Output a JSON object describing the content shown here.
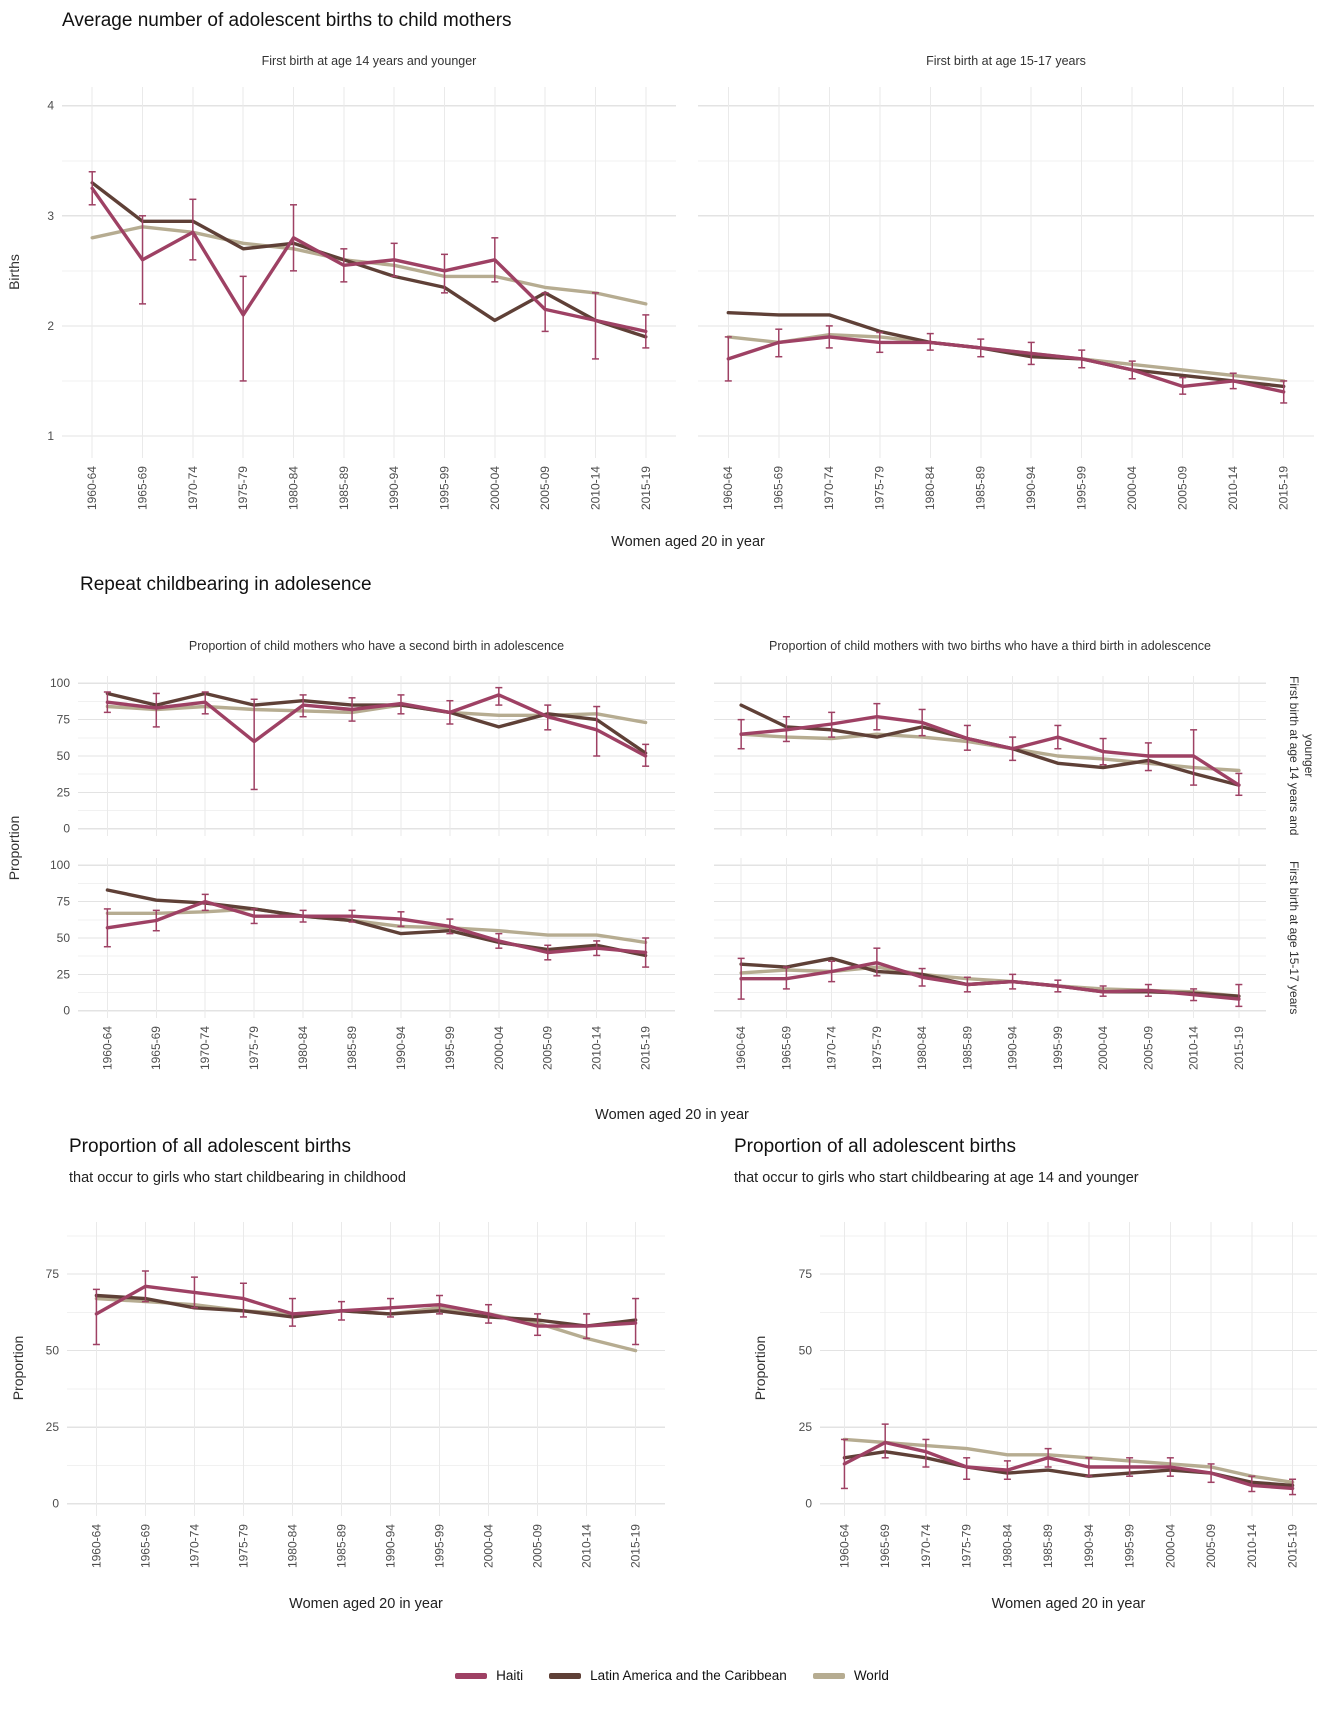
{
  "colors": {
    "Haiti": "#9e4164",
    "Latin America and the Caribbean": "#5f4037",
    "World": "#b6ac91"
  },
  "legend": {
    "items": [
      {
        "label": "Haiti"
      },
      {
        "label": "Latin America and the Caribbean"
      },
      {
        "label": "World"
      }
    ]
  },
  "chart_data": [
    {
      "id": "average-births",
      "type": "line",
      "title": "Average number of adolescent births to child mothers",
      "xlabel": "Women aged 20 in year",
      "ylabel": "Births",
      "categories": [
        "1960-64",
        "1965-69",
        "1970-74",
        "1975-79",
        "1980-84",
        "1985-89",
        "1990-94",
        "1995-99",
        "2000-04",
        "2005-09",
        "2010-14",
        "2015-19"
      ],
      "ylim": [
        0.8,
        4.17
      ],
      "yticks": [
        1,
        2,
        3,
        4
      ],
      "grid": true,
      "legend_position": "bottom",
      "panels": [
        {
          "facet": "First birth at age 14 years and younger",
          "series": [
            {
              "name": "Haiti",
              "values": [
                3.25,
                2.6,
                2.85,
                2.1,
                2.8,
                2.55,
                2.6,
                2.5,
                2.6,
                2.15,
                2.05,
                1.95
              ],
              "err_lo": [
                3.1,
                2.2,
                2.6,
                1.5,
                2.5,
                2.4,
                2.45,
                2.3,
                2.4,
                1.95,
                1.7,
                1.8
              ],
              "err_hi": [
                3.4,
                3.0,
                3.15,
                2.45,
                3.1,
                2.7,
                2.75,
                2.65,
                2.8,
                2.3,
                2.3,
                2.1
              ]
            },
            {
              "name": "Latin America and the Caribbean",
              "values": [
                3.3,
                2.95,
                2.95,
                2.7,
                2.75,
                2.6,
                2.45,
                2.35,
                2.05,
                2.3,
                2.05,
                1.9
              ]
            },
            {
              "name": "World",
              "values": [
                2.8,
                2.9,
                2.85,
                2.75,
                2.7,
                2.6,
                2.55,
                2.45,
                2.45,
                2.35,
                2.3,
                2.2
              ]
            }
          ]
        },
        {
          "facet": "First birth at age 15-17 years",
          "series": [
            {
              "name": "Haiti",
              "values": [
                1.7,
                1.85,
                1.9,
                1.85,
                1.85,
                1.8,
                1.75,
                1.7,
                1.6,
                1.45,
                1.5,
                1.4
              ],
              "err_lo": [
                1.5,
                1.72,
                1.8,
                1.76,
                1.78,
                1.72,
                1.65,
                1.62,
                1.52,
                1.38,
                1.43,
                1.3
              ],
              "err_hi": [
                1.9,
                1.97,
                2.0,
                1.94,
                1.93,
                1.88,
                1.85,
                1.78,
                1.68,
                1.53,
                1.57,
                1.5
              ]
            },
            {
              "name": "Latin America and the Caribbean",
              "values": [
                2.12,
                2.1,
                2.1,
                1.95,
                1.85,
                1.8,
                1.72,
                1.7,
                1.6,
                1.55,
                1.5,
                1.45
              ]
            },
            {
              "name": "World",
              "values": [
                1.9,
                1.85,
                1.92,
                1.9,
                1.85,
                1.8,
                1.75,
                1.7,
                1.65,
                1.6,
                1.55,
                1.5
              ]
            }
          ]
        }
      ]
    },
    {
      "id": "repeat-childbearing",
      "type": "line",
      "title": "Repeat childbearing in adolesence",
      "xlabel": "Women aged 20 in year",
      "ylabel": "Proportion",
      "col_titles": [
        "Proportion of child mothers who have a second birth in adolescence",
        "Proportion of child mothers with two births who have a third birth in adolescence"
      ],
      "row_titles": [
        "First birth at age 14 years and younger",
        "First birth at age 15-17 years"
      ],
      "categories": [
        "1960-64",
        "1965-69",
        "1970-74",
        "1975-79",
        "1980-84",
        "1985-89",
        "1990-94",
        "1995-99",
        "2000-04",
        "2005-09",
        "2010-14",
        "2015-19"
      ],
      "ylim": [
        -5,
        105
      ],
      "yticks": [
        0,
        25,
        50,
        75,
        100
      ],
      "grid": true,
      "panels": [
        {
          "row": 0,
          "col": 0,
          "series": [
            {
              "name": "Haiti",
              "values": [
                87,
                83,
                87,
                60,
                85,
                82,
                86,
                80,
                92,
                77,
                68,
                50
              ],
              "err_lo": [
                80,
                70,
                79,
                27,
                77,
                74,
                79,
                72,
                85,
                68,
                50,
                43
              ],
              "err_hi": [
                94,
                93,
                94,
                89,
                92,
                90,
                92,
                88,
                97,
                85,
                84,
                58
              ]
            },
            {
              "name": "Latin America and the Caribbean",
              "values": [
                93,
                85,
                93,
                85,
                88,
                85,
                85,
                80,
                70,
                79,
                75,
                52
              ]
            },
            {
              "name": "World",
              "values": [
                84,
                82,
                84,
                82,
                81,
                80,
                85,
                80,
                78,
                78,
                79,
                73
              ]
            }
          ]
        },
        {
          "row": 0,
          "col": 1,
          "series": [
            {
              "name": "Haiti",
              "values": [
                65,
                68,
                72,
                77,
                73,
                62,
                55,
                63,
                53,
                50,
                50,
                30
              ],
              "err_lo": [
                55,
                60,
                63,
                68,
                64,
                54,
                47,
                55,
                44,
                40,
                30,
                23
              ],
              "err_hi": [
                75,
                77,
                80,
                86,
                82,
                71,
                63,
                71,
                62,
                59,
                68,
                38
              ]
            },
            {
              "name": "Latin America and the Caribbean",
              "values": [
                85,
                70,
                68,
                63,
                70,
                62,
                55,
                45,
                42,
                47,
                38,
                30
              ]
            },
            {
              "name": "World",
              "values": [
                65,
                63,
                62,
                65,
                63,
                60,
                55,
                50,
                48,
                45,
                42,
                40
              ]
            }
          ]
        },
        {
          "row": 1,
          "col": 0,
          "series": [
            {
              "name": "Haiti",
              "values": [
                57,
                62,
                75,
                65,
                65,
                65,
                63,
                58,
                48,
                40,
                43,
                40
              ],
              "err_lo": [
                44,
                55,
                69,
                60,
                61,
                61,
                58,
                53,
                43,
                35,
                38,
                30
              ],
              "err_hi": [
                70,
                69,
                80,
                70,
                69,
                69,
                68,
                63,
                53,
                45,
                48,
                50
              ]
            },
            {
              "name": "Latin America and the Caribbean",
              "values": [
                83,
                76,
                74,
                70,
                65,
                62,
                53,
                55,
                47,
                42,
                45,
                38
              ]
            },
            {
              "name": "World",
              "values": [
                67,
                67,
                68,
                70,
                65,
                62,
                58,
                57,
                55,
                52,
                52,
                47
              ]
            }
          ]
        },
        {
          "row": 1,
          "col": 1,
          "series": [
            {
              "name": "Haiti",
              "values": [
                22,
                22,
                27,
                33,
                23,
                18,
                20,
                17,
                13,
                14,
                11,
                8
              ],
              "err_lo": [
                8,
                15,
                20,
                24,
                17,
                13,
                15,
                13,
                10,
                10,
                7,
                3
              ],
              "err_hi": [
                36,
                30,
                34,
                43,
                29,
                23,
                25,
                21,
                17,
                18,
                15,
                18
              ]
            },
            {
              "name": "Latin America and the Caribbean",
              "values": [
                32,
                30,
                36,
                27,
                25,
                18,
                20,
                17,
                13,
                13,
                12,
                10
              ]
            },
            {
              "name": "World",
              "values": [
                26,
                28,
                27,
                30,
                25,
                22,
                20,
                17,
                15,
                14,
                13,
                10
              ]
            }
          ]
        }
      ]
    },
    {
      "id": "proportion-childhood-start",
      "type": "line",
      "title": "Proportion of all adolescent births",
      "subtitle": "that occur to girls who start childbearing in childhood",
      "xlabel": "Women aged 20 in year",
      "ylabel": "Proportion",
      "categories": [
        "1960-64",
        "1965-69",
        "1970-74",
        "1975-79",
        "1980-84",
        "1985-89",
        "1990-94",
        "1995-99",
        "2000-04",
        "2005-09",
        "2010-14",
        "2015-19"
      ],
      "ylim": [
        -4,
        92
      ],
      "yticks": [
        0,
        25,
        50,
        75
      ],
      "grid": true,
      "panels": [
        {
          "series": [
            {
              "name": "Haiti",
              "values": [
                62,
                71,
                69,
                67,
                62,
                63,
                64,
                65,
                62,
                58,
                58,
                59
              ],
              "err_lo": [
                52,
                66,
                64,
                61,
                58,
                60,
                61,
                62,
                59,
                55,
                54,
                52
              ],
              "err_hi": [
                70,
                76,
                74,
                72,
                67,
                66,
                67,
                68,
                65,
                62,
                62,
                67
              ]
            },
            {
              "name": "Latin America and the Caribbean",
              "values": [
                68,
                67,
                64,
                63,
                61,
                63,
                62,
                63,
                61,
                60,
                58,
                60
              ]
            },
            {
              "name": "World",
              "values": [
                67,
                66,
                65,
                63,
                62,
                63,
                62,
                64,
                62,
                59,
                54,
                50
              ]
            }
          ]
        }
      ]
    },
    {
      "id": "proportion-age14-start",
      "type": "line",
      "title": "Proportion of all adolescent births",
      "subtitle": "that occur to girls who start childbearing at age 14 and younger",
      "xlabel": "Women aged 20 in year",
      "ylabel": "Proportion",
      "categories": [
        "1960-64",
        "1965-69",
        "1970-74",
        "1975-79",
        "1980-84",
        "1985-89",
        "1990-94",
        "1995-99",
        "2000-04",
        "2005-09",
        "2010-14",
        "2015-19"
      ],
      "ylim": [
        -4,
        92
      ],
      "yticks": [
        0,
        25,
        50,
        75
      ],
      "grid": true,
      "panels": [
        {
          "series": [
            {
              "name": "Haiti",
              "values": [
                13,
                20,
                17,
                12,
                11,
                15,
                12,
                12,
                12,
                10,
                6,
                5
              ],
              "err_lo": [
                5,
                15,
                12,
                8,
                8,
                12,
                9,
                9,
                9,
                7,
                4,
                3
              ],
              "err_hi": [
                21,
                26,
                21,
                15,
                14,
                18,
                15,
                15,
                15,
                13,
                9,
                8
              ]
            },
            {
              "name": "Latin America and the Caribbean",
              "values": [
                15,
                17,
                15,
                12,
                10,
                11,
                9,
                10,
                11,
                10,
                7,
                6
              ]
            },
            {
              "name": "World",
              "values": [
                21,
                20,
                19,
                18,
                16,
                16,
                15,
                14,
                13,
                12,
                9,
                7
              ]
            }
          ]
        }
      ]
    }
  ]
}
